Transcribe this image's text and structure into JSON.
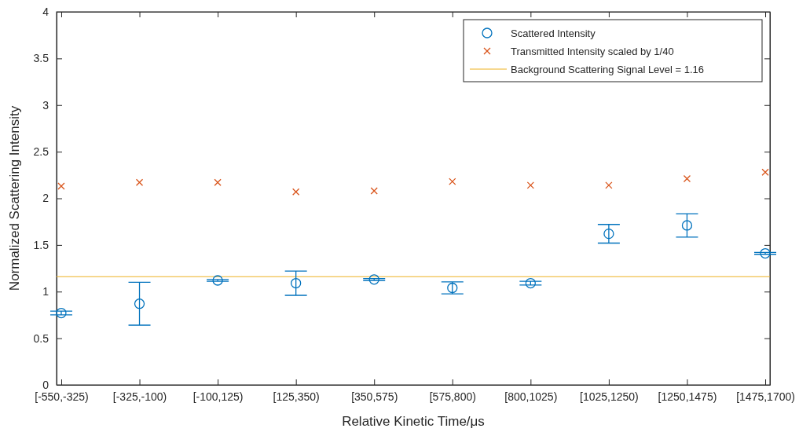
{
  "chart_data": {
    "type": "scatter",
    "xlabel": "Relative Kinetic Time/μs",
    "ylabel": "Normalized Scattering Intensity",
    "categories": [
      "[-550,-325)",
      "[-325,-100)",
      "[-100,125)",
      "[125,350)",
      "[350,575)",
      "[575,800)",
      "[800,1025)",
      "[1025,1250)",
      "[1250,1475)",
      "[1475,1700)"
    ],
    "series": [
      {
        "name": "Scattered Intensity",
        "color": "#0072bd",
        "marker": "circle",
        "values": [
          0.77,
          0.87,
          1.12,
          1.09,
          1.13,
          1.04,
          1.09,
          1.62,
          1.71,
          1.41
        ],
        "errors": [
          0.02,
          0.23,
          0.01,
          0.13,
          0.01,
          0.065,
          0.02,
          0.1,
          0.125,
          0.01
        ]
      },
      {
        "name": "Transmitted Intensity scaled by 1/40",
        "color": "#d95319",
        "marker": "cross",
        "values": [
          2.13,
          2.17,
          2.17,
          2.07,
          2.08,
          2.18,
          2.14,
          2.14,
          2.21,
          2.28
        ]
      }
    ],
    "ref_lines": [
      {
        "axis": "y",
        "value": 1.16,
        "label": "Background Scattering Signal Level = 1.16",
        "color": "#edb120",
        "line_style": "solid"
      }
    ],
    "ylim": [
      0,
      4
    ],
    "yticks": [
      0,
      0.5,
      1,
      1.5,
      2,
      2.5,
      3,
      3.5,
      4
    ],
    "grid": false,
    "legend": "top right"
  }
}
